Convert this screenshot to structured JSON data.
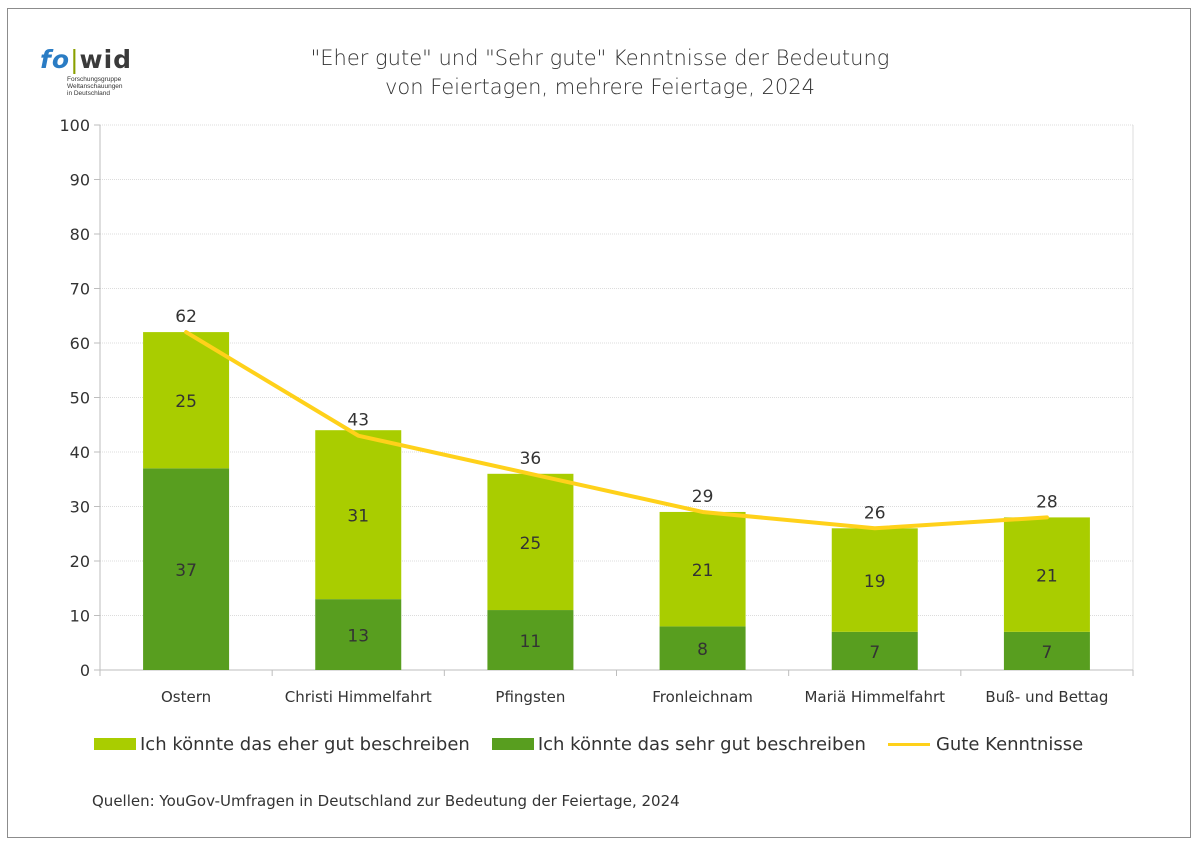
{
  "logo": {
    "word_fo": "fo",
    "word_sep": "|",
    "word_wid": "wid",
    "subtitle": "Forschungsgruppe\nWeltanschauungen\nin Deutschland"
  },
  "source": "Quellen: YouGov-Umfragen in Deutschland zur Bedeutung der Feiertage, 2024",
  "chart_data": {
    "type": "bar",
    "stacked": true,
    "title_lines": [
      "\"Eher gute\" und \"Sehr gute\" Kenntnisse der Bedeutung",
      "von Feiertagen, mehrere Feiertage, 2024"
    ],
    "categories": [
      "Ostern",
      "Christi Himmelfahrt",
      "Pfingsten",
      "Fronleichnam",
      "Mariä Himmelfahrt",
      "Buß- und Bettag"
    ],
    "ylim": [
      0,
      100
    ],
    "yticks": [
      0,
      10,
      20,
      30,
      40,
      50,
      60,
      70,
      80,
      90,
      100
    ],
    "grid": true,
    "legend_position": "bottom",
    "series": [
      {
        "name": "Ich könnte das sehr gut beschreiben",
        "kind": "bar",
        "color": "#589e1f",
        "values": [
          37,
          13,
          11,
          8,
          7,
          7
        ]
      },
      {
        "name": "Ich könnte das eher gut beschreiben",
        "kind": "bar",
        "color": "#a9cd00",
        "values": [
          25,
          31,
          25,
          21,
          19,
          21
        ]
      },
      {
        "name": "Gute Kenntnisse",
        "kind": "line",
        "color": "#ffd11a",
        "values": [
          62,
          43,
          36,
          29,
          26,
          28
        ]
      }
    ],
    "legend_order": [
      1,
      0,
      2
    ]
  }
}
